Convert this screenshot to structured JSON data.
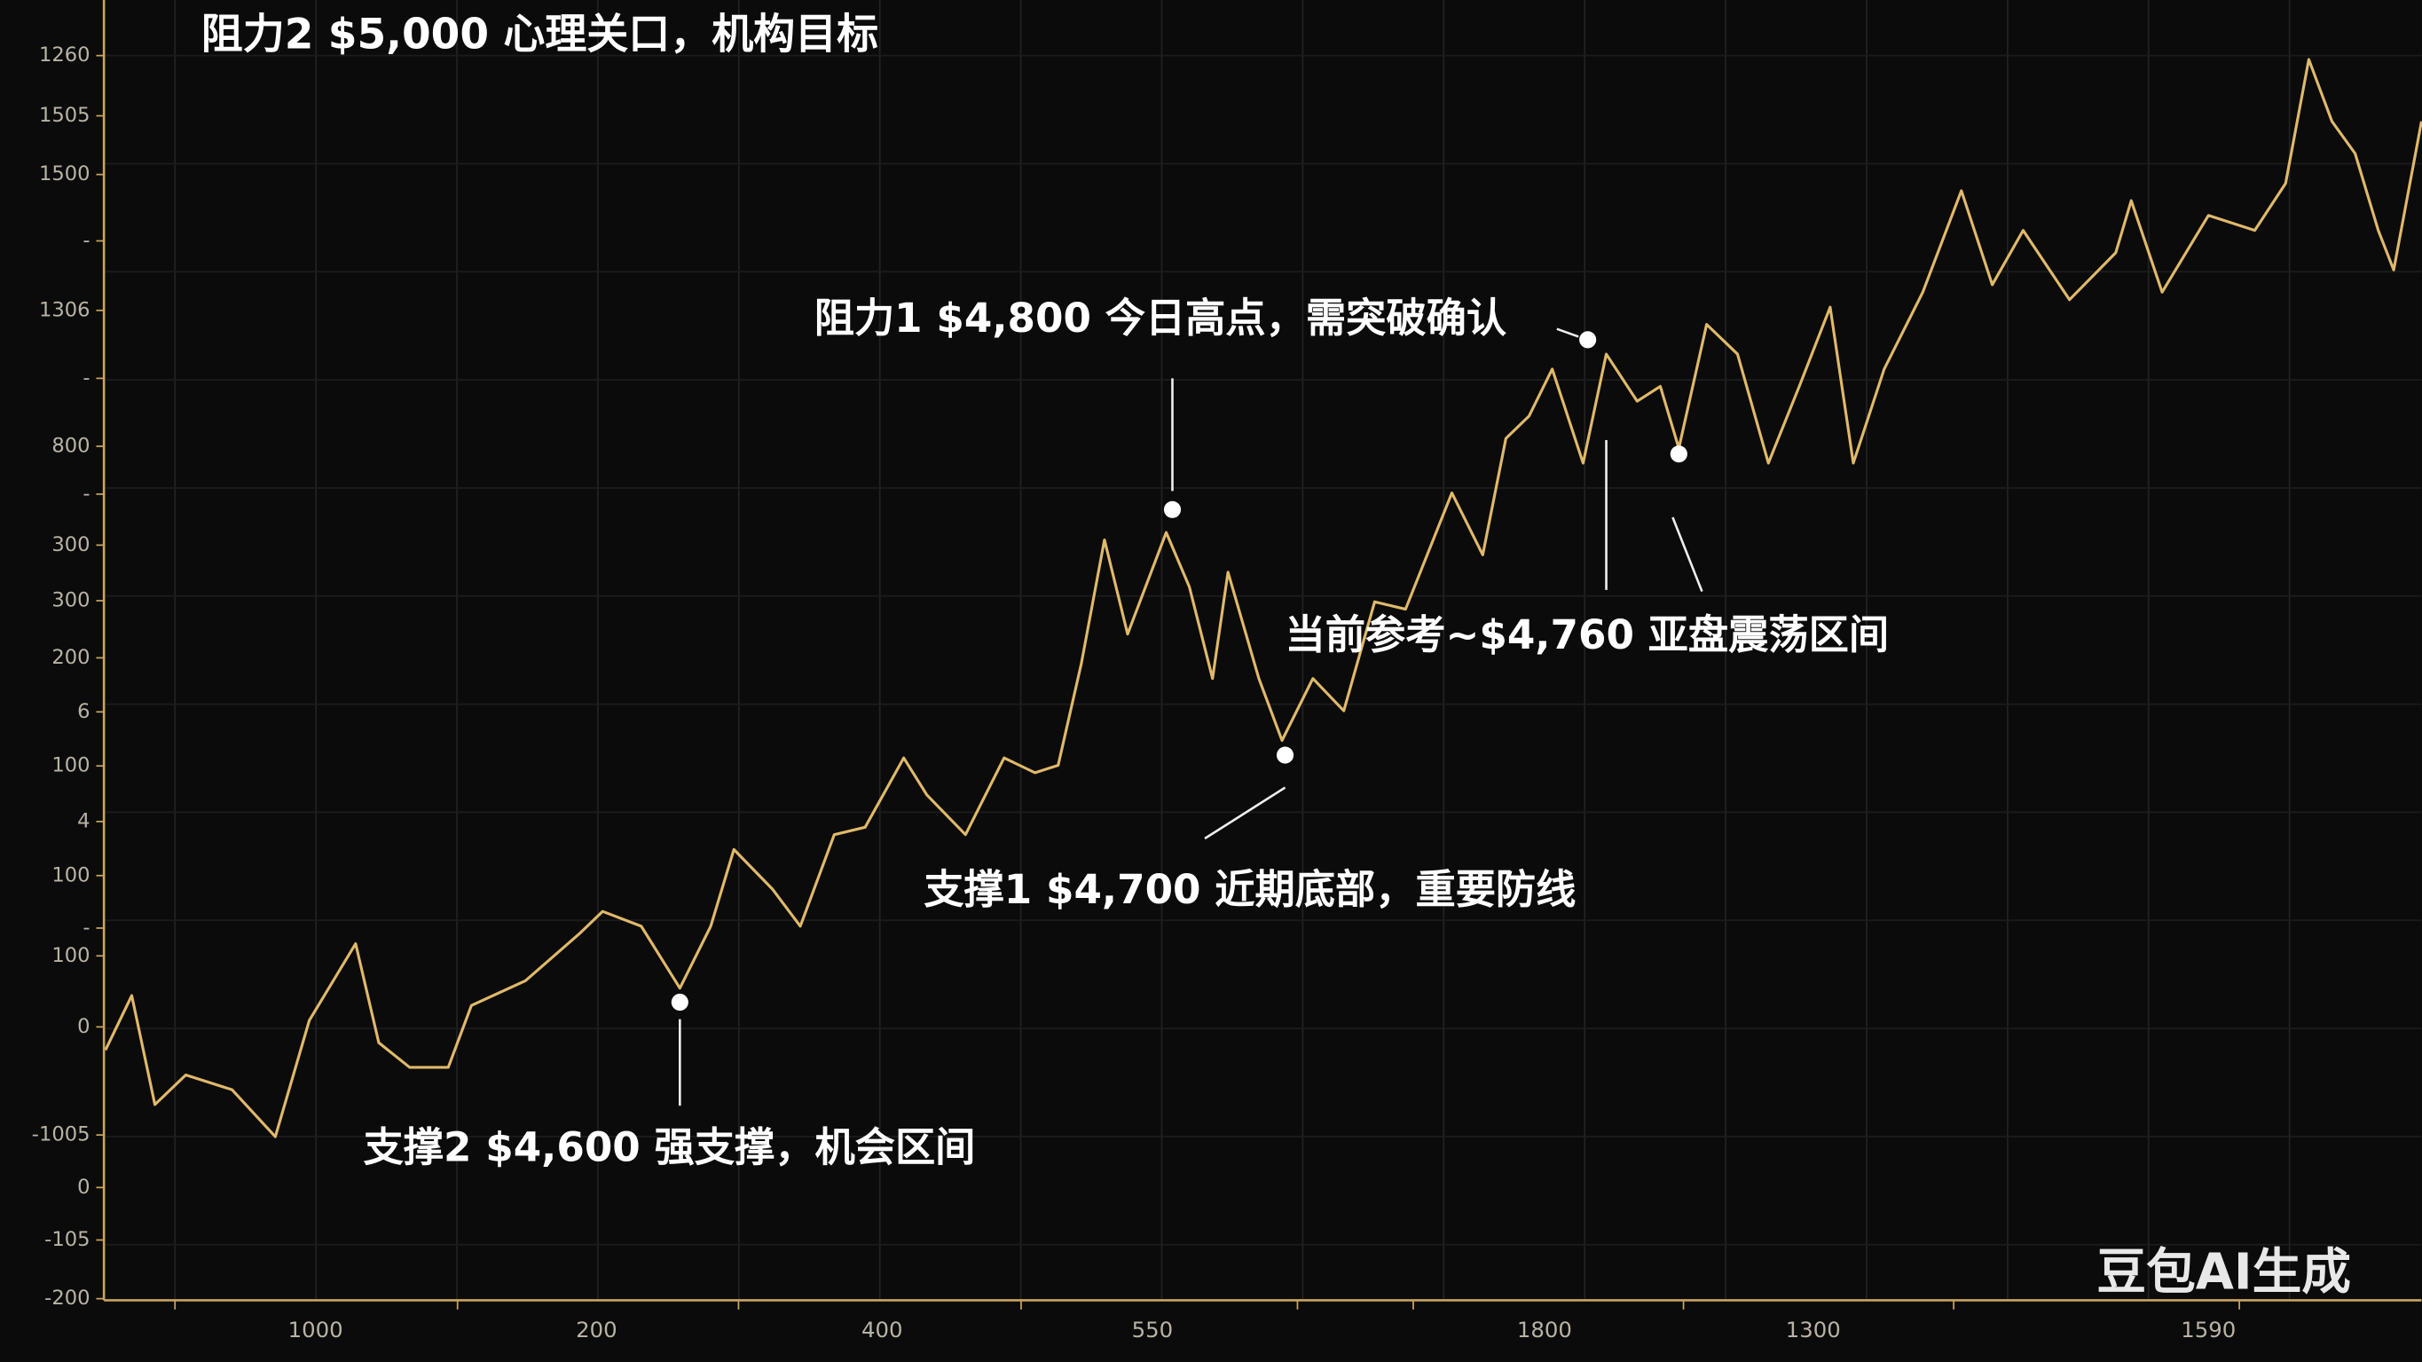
{
  "chart_data": {
    "type": "line",
    "title": "阻力2 $5,000 心理关口，机构目标",
    "watermark": "豆包AI生成",
    "y_tick_labels": [
      "1260",
      "1505",
      "1500",
      "-",
      "1306",
      "-",
      "800",
      "-",
      "300",
      "300",
      "200",
      "6",
      "100",
      "4",
      "100",
      "-",
      "100",
      "0",
      "-1005",
      "0",
      "-105",
      "-200"
    ],
    "x_tick_labels": [
      "1000",
      "200",
      "400",
      "550",
      "1800",
      "1300",
      "1590"
    ],
    "annotations": [
      "支撑2 $4,600 强支撑，机会区间",
      "阻力1 $4,800 今日高点，需突破确认",
      "支撑1 $4,700 近期底部，重要防线",
      "当前参考~$4,760 亚盘震荡区间"
    ],
    "xlim": [
      0,
      1500
    ],
    "ylim": [
      4480,
      5005
    ],
    "series": [
      {
        "color": "#e0b96a",
        "x": [
          0,
          17,
          32,
          52,
          82,
          110,
          132,
          162,
          177,
          197,
          222,
          237,
          272,
          307,
          322,
          347,
          372,
          392,
          407,
          432,
          450,
          472,
          492,
          517,
          532,
          557,
          582,
          602,
          617,
          632,
          647,
          662,
          687,
          702,
          717,
          727,
          747,
          762,
          782,
          802,
          822,
          842,
          872,
          892,
          907,
          922,
          937,
          957,
          972,
          992,
          1007,
          1019,
          1037,
          1057,
          1077,
          1097,
          1117,
          1132,
          1152,
          1177,
          1202,
          1222,
          1242,
          1272,
          1302,
          1312,
          1332,
          1362,
          1392,
          1412,
          1427,
          1442,
          1457,
          1472,
          1482,
          1500
        ],
        "values": [
          4581,
          4603,
          4559,
          4571,
          4565,
          4546,
          4593,
          4624,
          4584,
          4574,
          4574,
          4599,
          4609,
          4628,
          4637,
          4631,
          4606,
          4631,
          4662,
          4646,
          4631,
          4668,
          4671,
          4699,
          4684,
          4668,
          4699,
          4693,
          4696,
          4737,
          4787,
          4749,
          4790,
          4768,
          4731,
          4774,
          4731,
          4706,
          4731,
          4718,
          4762,
          4759,
          4806,
          4781,
          4828,
          4837,
          4856,
          4818,
          4862,
          4843,
          4849,
          4824,
          4874,
          4862,
          4818,
          4849,
          4881,
          4818,
          4856,
          4887,
          4928,
          4890,
          4912,
          4884,
          4903,
          4924,
          4887,
          4918,
          4912,
          4931,
          4981,
          4956,
          4943,
          4912,
          4896,
          4956
        ]
      }
    ]
  }
}
